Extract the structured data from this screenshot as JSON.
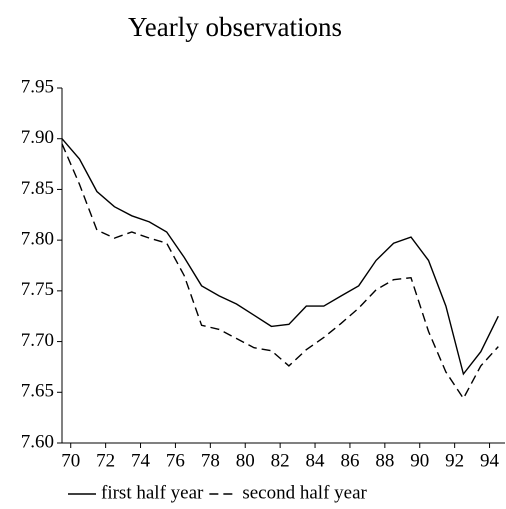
{
  "chart_data": {
    "type": "line",
    "title": "Yearly observations",
    "x": [
      69.5,
      70.5,
      71.5,
      72.5,
      73.5,
      74.5,
      75.5,
      76.5,
      77.5,
      78.5,
      79.5,
      80.5,
      81.5,
      82.5,
      83.5,
      84.5,
      85.5,
      86.5,
      87.5,
      88.5,
      89.5,
      90.5,
      91.5,
      92.5,
      93.5,
      94.5
    ],
    "series": [
      {
        "name": "first half year",
        "color": "#000000",
        "dash": "solid",
        "values": [
          7.9,
          7.88,
          7.848,
          7.833,
          7.824,
          7.818,
          7.808,
          7.783,
          7.755,
          7.745,
          7.737,
          7.726,
          7.715,
          7.717,
          7.735,
          7.735,
          7.745,
          7.755,
          7.78,
          7.797,
          7.803,
          7.78,
          7.735,
          7.668,
          7.69,
          7.725
        ]
      },
      {
        "name": "second half year",
        "color": "#000000",
        "dash": "dashed",
        "values": [
          7.895,
          7.855,
          7.81,
          7.802,
          7.808,
          7.802,
          7.797,
          7.765,
          7.716,
          7.712,
          7.703,
          7.694,
          7.691,
          7.676,
          7.692,
          7.704,
          7.718,
          7.733,
          7.751,
          7.761,
          7.763,
          7.71,
          7.67,
          7.644,
          7.676,
          7.695
        ]
      }
    ],
    "xlim": [
      69.5,
      95
    ],
    "xticks": [
      70,
      72,
      74,
      76,
      78,
      80,
      82,
      84,
      86,
      88,
      90,
      92,
      94
    ],
    "ylim": [
      7.6,
      7.95
    ],
    "yticks": [
      {
        "value": 7.6,
        "label": "7.60"
      },
      7.65,
      {
        "value": 7.7,
        "label": "7.70"
      },
      7.75,
      {
        "value": 7.8,
        "label": "7.80"
      },
      7.85,
      {
        "value": 7.9,
        "label": "7.90"
      },
      7.95
    ],
    "legend": "bottom"
  }
}
